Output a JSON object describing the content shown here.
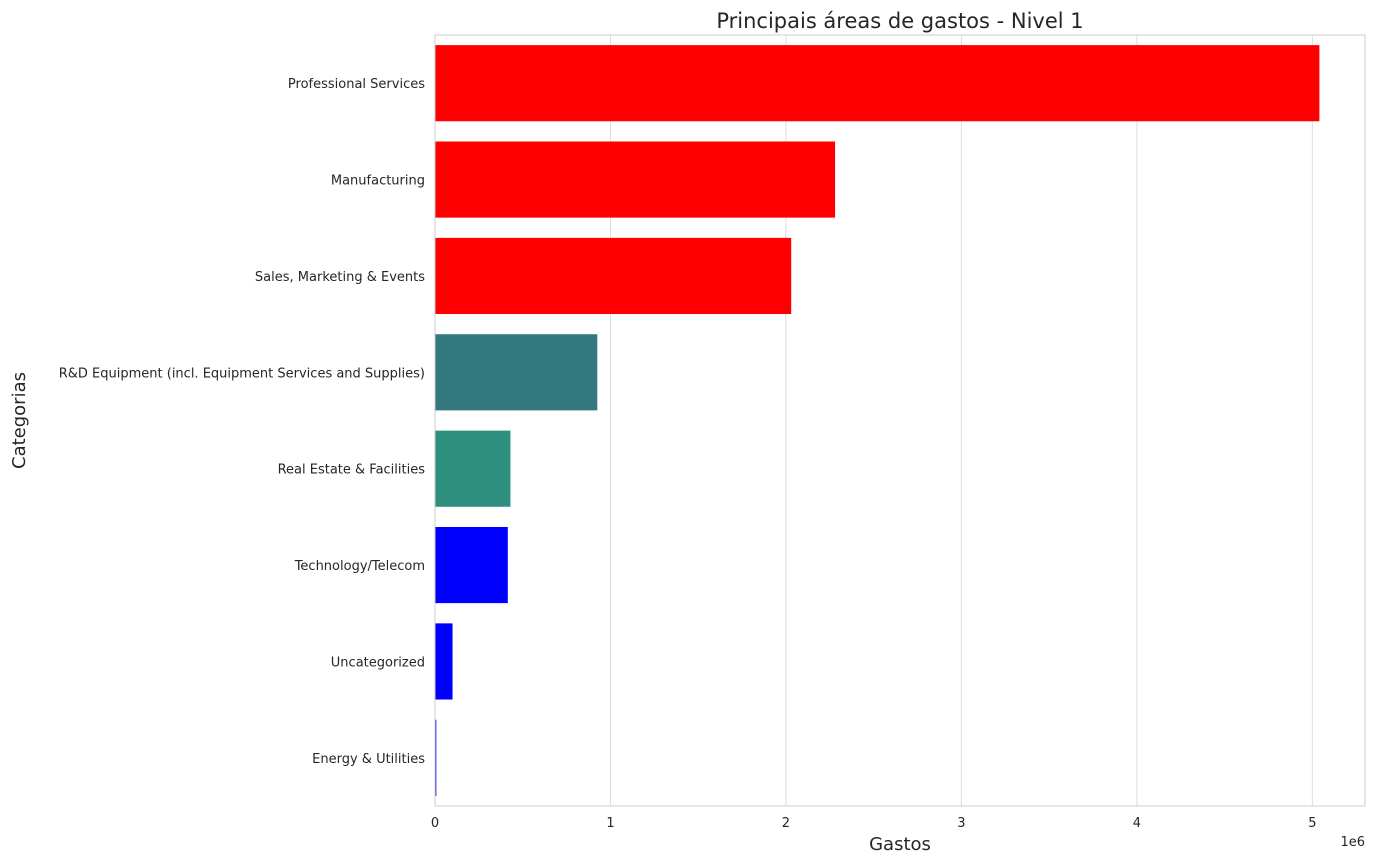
{
  "chart_data": {
    "type": "bar",
    "orientation": "horizontal",
    "title": "Principais áreas de gastos - Nivel 1",
    "xlabel": "Gastos",
    "ylabel": "Categorias",
    "x_offset_label": "1e6",
    "x_scale": 1000000,
    "xlim": [
      0,
      5300000
    ],
    "x_ticks": [
      0,
      1,
      2,
      3,
      4,
      5
    ],
    "grid": "vertical",
    "legend": "none",
    "categories": [
      "Professional Services",
      "Manufacturing",
      "Sales, Marketing & Events",
      "R&D Equipment (incl. Equipment Services and Supplies)",
      "Real Estate & Facilities",
      "Technology/Telecom",
      "Uncategorized",
      "Energy & Utilities"
    ],
    "values": [
      5040000,
      2280000,
      2030000,
      925000,
      430000,
      415000,
      100000,
      8000
    ],
    "colors": [
      "#ff0000",
      "#ff0000",
      "#ff0000",
      "#33777f",
      "#2e8f7f",
      "#0000ff",
      "#0000ff",
      "#2a2aff"
    ],
    "grid_color": "#dddddd",
    "frame_color": "#cccccc"
  }
}
